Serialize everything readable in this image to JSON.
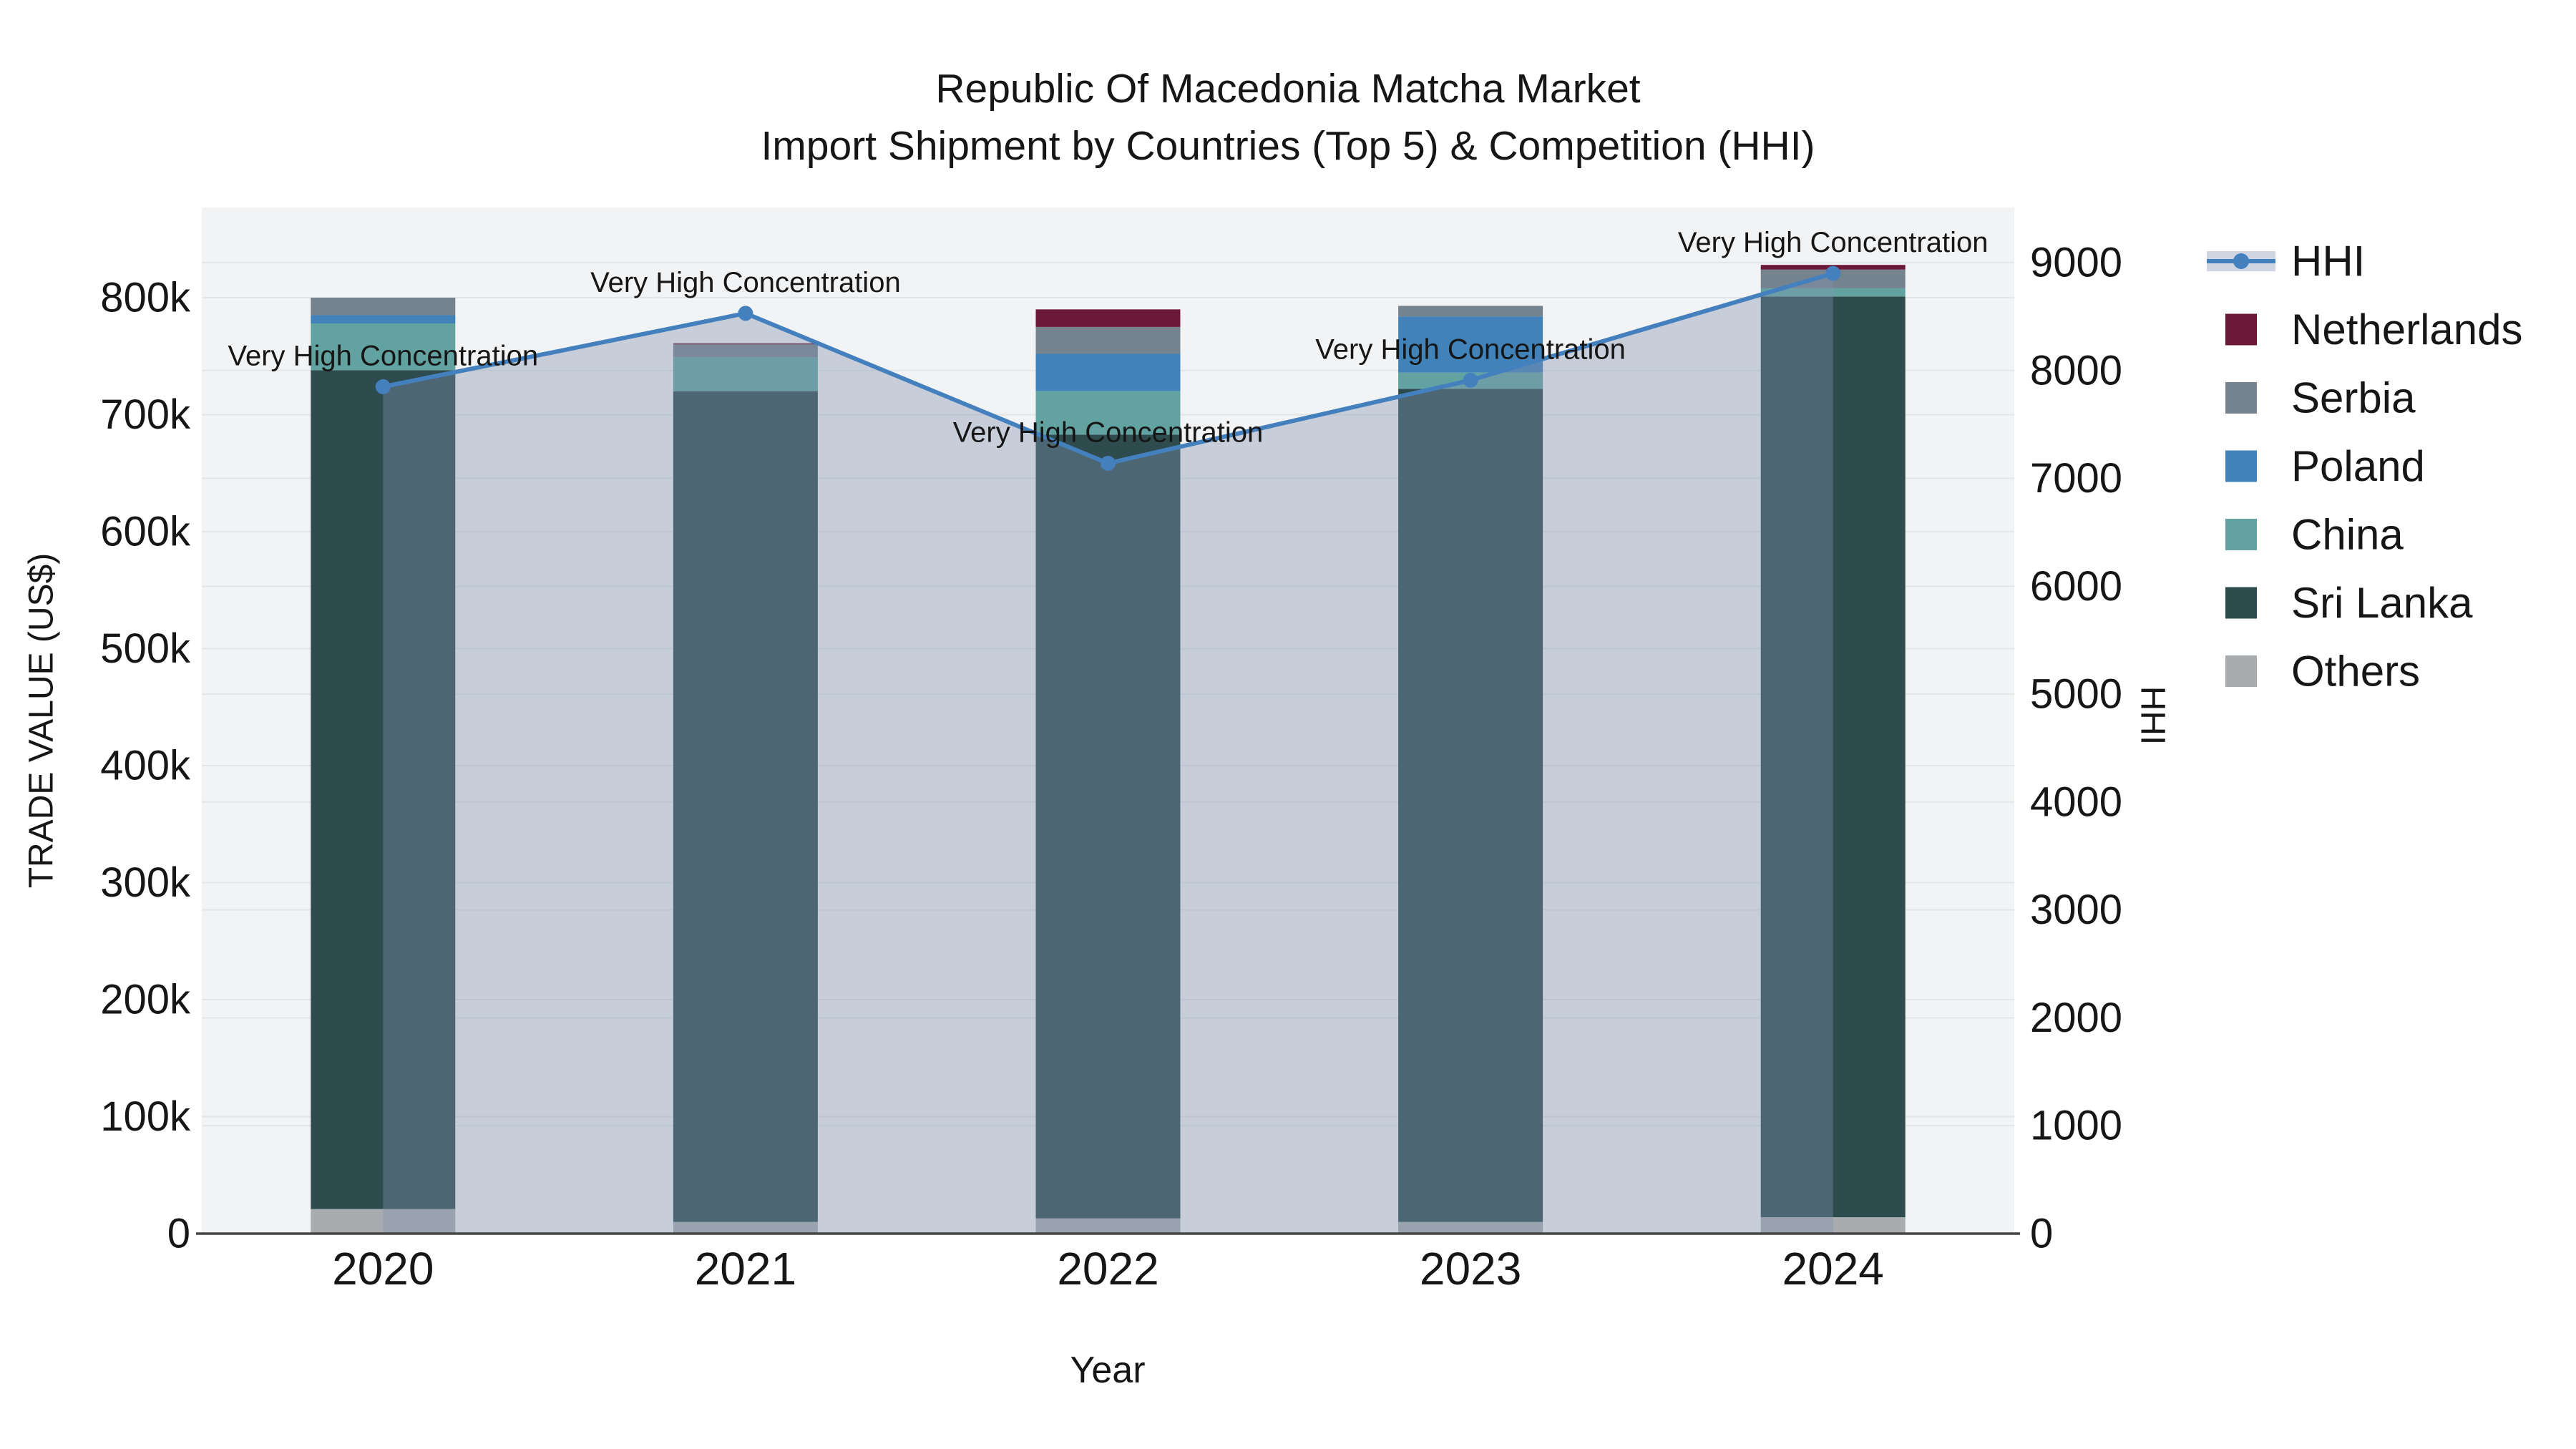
{
  "chart_data": {
    "type": "bar+line",
    "stacked": true,
    "title": "Republic Of Macedonia Matcha Market",
    "subtitle": "Import Shipment by Countries (Top 5) & Competition (HHI)",
    "xlabel": "Year",
    "ylabel": "TRADE VALUE (US$)",
    "y2label": "HHI",
    "categories": [
      "2020",
      "2021",
      "2022",
      "2023",
      "2024"
    ],
    "stack_order": "bottom-to-top",
    "bar_series": [
      {
        "name": "Others",
        "color": "#A9ACAF",
        "values": [
          21000,
          10000,
          13000,
          10000,
          14000
        ]
      },
      {
        "name": "Sri Lanka",
        "color": "#2E4B4E",
        "values": [
          717000,
          710000,
          670000,
          712000,
          787000
        ]
      },
      {
        "name": "China",
        "color": "#62A3A1",
        "values": [
          40000,
          29000,
          37000,
          14000,
          7000
        ]
      },
      {
        "name": "Poland",
        "color": "#4182B9",
        "values": [
          7000,
          0,
          32000,
          48000,
          0
        ]
      },
      {
        "name": "Serbia",
        "color": "#75838F",
        "values": [
          15000,
          11000,
          23000,
          9000,
          16000
        ]
      },
      {
        "name": "Netherlands",
        "color": "#6B1839",
        "values": [
          0,
          1000,
          15000,
          0,
          4000
        ]
      }
    ],
    "line_series": {
      "name": "HHI",
      "axis": "y2",
      "color": "#4480BD",
      "fill_color": "rgba(130,146,176,0.38)",
      "values": [
        7850,
        8530,
        7140,
        7910,
        8900
      ]
    },
    "annotations": [
      {
        "text": "Very High Concentration",
        "category": "2020"
      },
      {
        "text": "Very High Concentration",
        "category": "2021"
      },
      {
        "text": "Very High Concentration",
        "category": "2022"
      },
      {
        "text": "Very High Concentration",
        "category": "2023"
      },
      {
        "text": "Very High Concentration",
        "category": "2024"
      }
    ],
    "y_axis": {
      "tick_values": [
        0,
        100000,
        200000,
        300000,
        400000,
        500000,
        600000,
        700000,
        800000
      ],
      "tick_labels": [
        "0",
        "100k",
        "200k",
        "300k",
        "400k",
        "500k",
        "600k",
        "700k",
        "800k"
      ],
      "range": [
        0,
        877000
      ]
    },
    "y2_axis": {
      "tick_values": [
        0,
        1000,
        2000,
        3000,
        4000,
        5000,
        6000,
        7000,
        8000,
        9000
      ],
      "tick_labels": [
        "0",
        "1000",
        "2000",
        "3000",
        "4000",
        "5000",
        "6000",
        "7000",
        "8000",
        "9000"
      ],
      "range": [
        0,
        9510
      ]
    },
    "legend": [
      "HHI",
      "Netherlands",
      "Serbia",
      "Poland",
      "China",
      "Sri Lanka",
      "Others"
    ],
    "legend_position": "right",
    "grid": true,
    "plot_bg_color": "#F2F3F4",
    "grid_color": "#E3E5E7",
    "axis_line_color": "#454545",
    "text_color": "#161616"
  }
}
